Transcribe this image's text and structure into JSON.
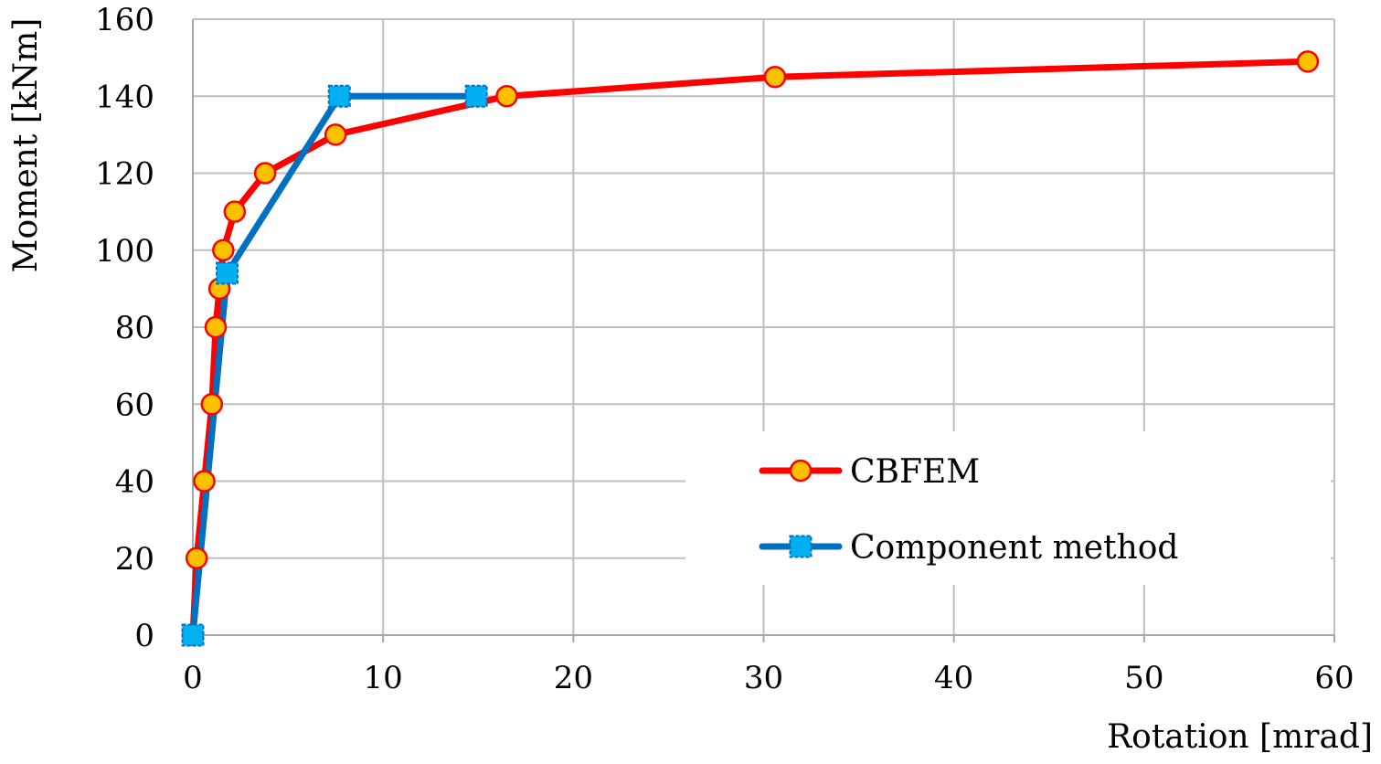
{
  "chart_data": {
    "type": "line",
    "title": "",
    "xlabel": "Rotation [mrad]",
    "ylabel": "Moment [kNm]",
    "xlim": [
      0,
      60
    ],
    "ylim": [
      0,
      160
    ],
    "xticks": [
      0,
      10,
      20,
      30,
      40,
      50,
      60
    ],
    "yticks": [
      0,
      20,
      40,
      60,
      80,
      100,
      120,
      140,
      160
    ],
    "grid": true,
    "legend_position": "bottom-right",
    "series": [
      {
        "name": "CBFEM",
        "color": "#ff0000",
        "marker": "circle",
        "marker_fill": "#ffc000",
        "x": [
          0,
          0.2,
          0.6,
          1.0,
          1.2,
          1.4,
          1.6,
          2.2,
          3.8,
          7.5,
          16.5,
          30.6,
          58.6
        ],
        "y": [
          0,
          20,
          40,
          60,
          80,
          90,
          100,
          110,
          120,
          130,
          140,
          145,
          149
        ]
      },
      {
        "name": "Component method",
        "color": "#0070c0",
        "marker": "square",
        "marker_fill": "#00b0f0",
        "x": [
          0,
          1.8,
          7.7,
          14.9
        ],
        "y": [
          0,
          94,
          140,
          140
        ]
      }
    ]
  }
}
